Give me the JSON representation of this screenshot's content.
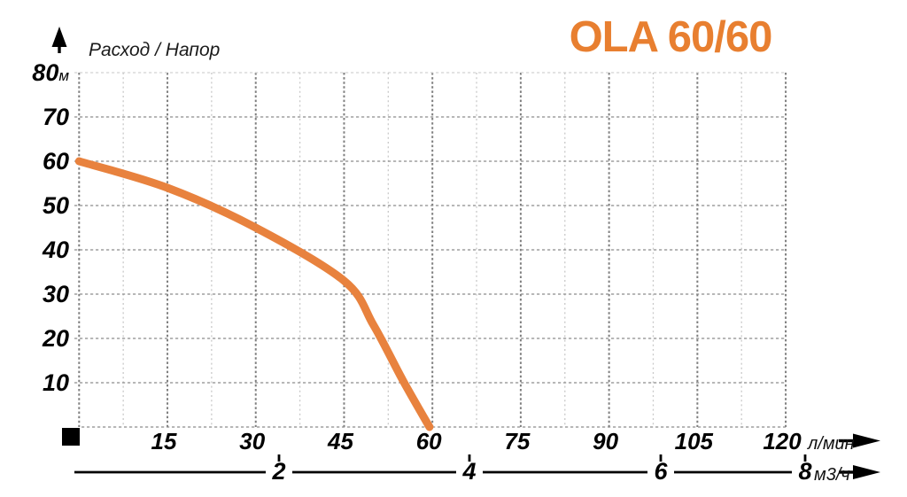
{
  "header": {
    "title": "OLA 60/60",
    "axis_caption": "Расход / Напор"
  },
  "y_axis": {
    "unit": "м",
    "ticks": [
      80,
      70,
      60,
      50,
      40,
      30,
      20,
      10
    ]
  },
  "x_axis": {
    "unit": "л/мин",
    "ticks": [
      15,
      30,
      45,
      60,
      75,
      90,
      105,
      120
    ]
  },
  "secondary_x_axis": {
    "unit": "м3/ч",
    "ticks": [
      2,
      4,
      6,
      8
    ]
  },
  "chart_data": {
    "type": "line",
    "title": "OLA 60/60",
    "ylabel": "Расход / Напор",
    "y_unit": "м",
    "xlabel": "л/мин",
    "x2label": "м3/ч",
    "xlim": [
      0,
      120
    ],
    "ylim": [
      0,
      80
    ],
    "x_major_step": 15,
    "x_minor_step": 7.5,
    "y_major_step": 10,
    "grid": true,
    "legend": "none",
    "series": [
      {
        "name": "OLA 60/60",
        "x": [
          0,
          15,
          30,
          45,
          50,
          55,
          59.5
        ],
        "y": [
          60,
          54,
          45,
          33,
          23,
          10.5,
          0
        ]
      }
    ]
  },
  "colors": {
    "title_orange": "#E87F30",
    "curve_orange": "#E8823E",
    "grid_horizontal": "#8c8c8c",
    "grid_vertical_major": "#7f7f7f",
    "grid_minor": "#c9c9c9",
    "axis_black": "#000000"
  }
}
